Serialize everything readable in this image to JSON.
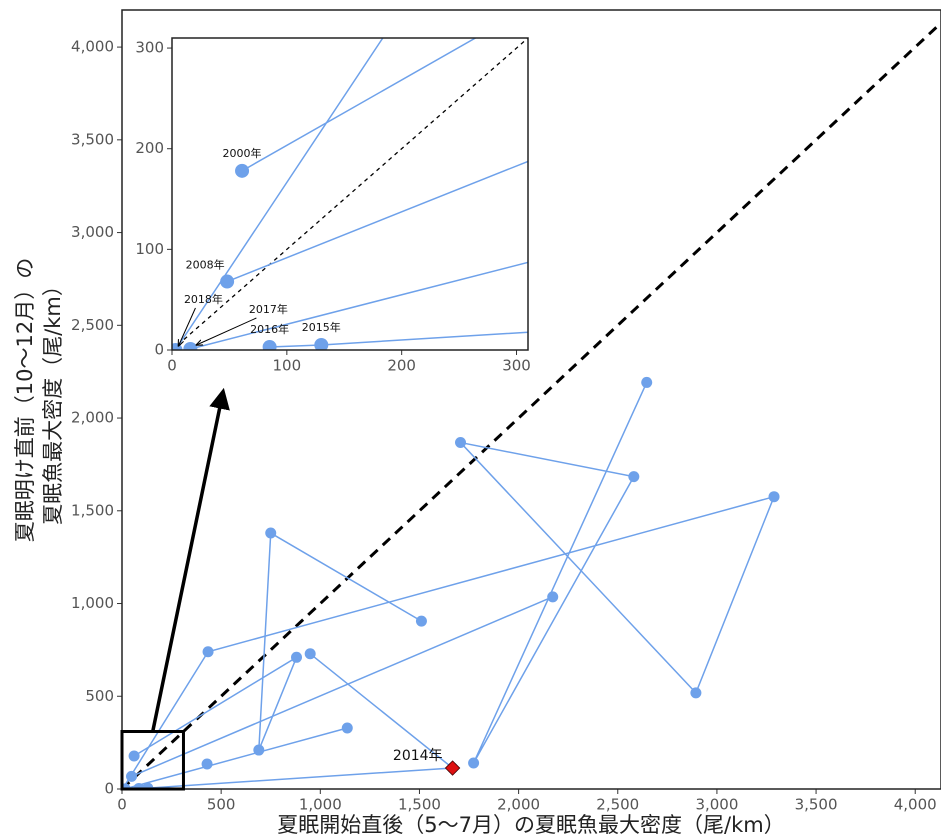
{
  "chart_data": {
    "type": "line",
    "x_label": "夏眠開始直後（5〜7月）の夏眠魚最大密度（尾/km）",
    "y_label": [
      "夏眠明け直前（10〜12月）の",
      "夏眠魚最大密度（尾/km）"
    ],
    "xlim": [
      0,
      4130
    ],
    "ylim": [
      0,
      4200
    ],
    "xticks": [
      0,
      500,
      {
        "value": 1000,
        "label": "1,000"
      },
      {
        "value": 1500,
        "label": "1,500"
      },
      {
        "value": 2000,
        "label": "2,000"
      },
      {
        "value": 2500,
        "label": "2,500"
      },
      {
        "value": 3000,
        "label": "3,000"
      },
      {
        "value": 3500,
        "label": "3,500"
      },
      {
        "value": 4000,
        "label": "4,000"
      }
    ],
    "yticks": [
      0,
      500,
      {
        "value": 1000,
        "label": "1,000"
      },
      {
        "value": 1500,
        "label": "1,500"
      },
      {
        "value": 2000,
        "label": "2,000"
      },
      {
        "value": 2500,
        "label": "2,500"
      },
      {
        "value": 3000,
        "label": "3,000"
      },
      {
        "value": 3500,
        "label": "3,500"
      },
      {
        "value": 4000,
        "label": "4,000"
      }
    ],
    "diagonal": true,
    "grid": false,
    "series": [
      {
        "color": "#6ea1ea",
        "marker": "circle",
        "x": [
          61,
          880,
          690,
          750,
          1510,
          null,
          3,
          434,
          3288,
          2894,
          1707,
          2581,
          1773,
          2646,
          null,
          48,
          2172,
          null,
          949,
          1667,
          130,
          85,
          null,
          16,
          1136,
          null,
          429
        ],
        "values": [
          178,
          710,
          210,
          1380,
          905,
          null,
          0,
          740,
          1576,
          518,
          1868,
          1684,
          140,
          2192,
          null,
          68,
          1036,
          null,
          729,
          113,
          5,
          3,
          null,
          1,
          329,
          null,
          135
        ],
        "point_labels": [
          "2000年",
          null,
          null,
          null,
          null,
          null,
          "2018年",
          null,
          null,
          null,
          null,
          null,
          null,
          null,
          null,
          "2008年",
          null,
          null,
          null,
          null,
          "2015年",
          "2016年",
          null,
          "2017年",
          null,
          null,
          null
        ]
      },
      {
        "color": "#dd1111",
        "marker": "diamond",
        "x": [
          1667
        ],
        "values": [
          113
        ],
        "point_labels": [
          "2014年"
        ]
      }
    ],
    "inset": {
      "xlim": [
        0,
        310
      ],
      "ylim": [
        0,
        310
      ],
      "xticks": [
        0,
        100,
        200,
        300
      ],
      "yticks": [
        0,
        100,
        200,
        300
      ]
    }
  }
}
